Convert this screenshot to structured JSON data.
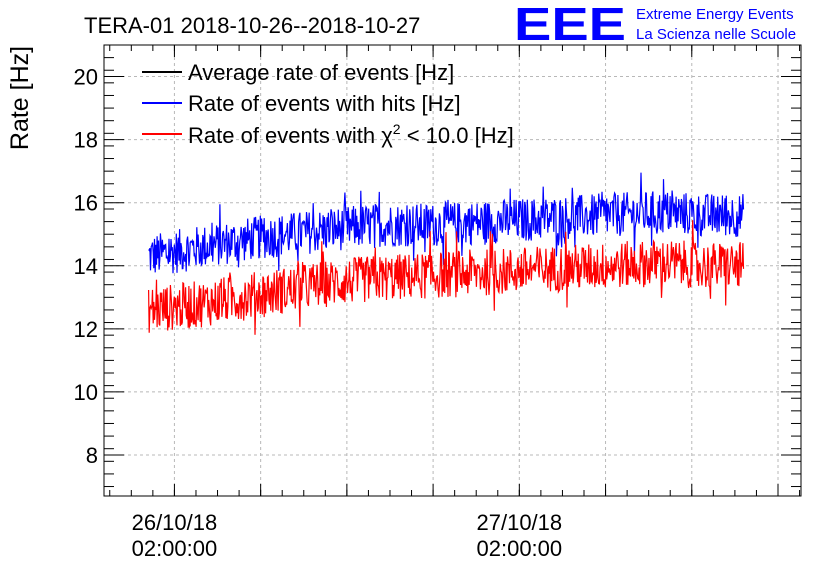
{
  "chart_data": {
    "type": "line",
    "title": "TERA-01 2018-10-26--2018-10-27",
    "ylabel": "Rate [Hz]",
    "xlabel": "",
    "ylim": [
      6.7,
      21
    ],
    "y_ticks": [
      8,
      10,
      12,
      14,
      16,
      18,
      20
    ],
    "x_ticks": [
      {
        "date": "26/10/18",
        "time": "02:00:00",
        "hours": 0
      },
      {
        "date": "27/10/18",
        "time": "02:00:00",
        "hours": 24
      }
    ],
    "xlim_hours": [
      -4.9,
      43.6
    ],
    "x_range_hours": [
      -1.8,
      39.6
    ],
    "grid": true,
    "legend_position": "top-left",
    "series": [
      {
        "name": "Average rate of events [Hz]",
        "color": "#000000",
        "trend_points": []
      },
      {
        "name": "Rate of events with hits [Hz]",
        "color": "#0000ff",
        "trend_points": [
          [
            -1.8,
            14.3
          ],
          [
            2,
            14.6
          ],
          [
            6,
            14.9
          ],
          [
            10,
            15.1
          ],
          [
            14,
            15.3
          ],
          [
            18,
            15.3
          ],
          [
            22,
            15.4
          ],
          [
            26,
            15.5
          ],
          [
            30,
            15.6
          ],
          [
            34,
            15.7
          ],
          [
            37,
            15.6
          ],
          [
            39.6,
            15.6
          ]
        ],
        "noise_amplitude": 0.7
      },
      {
        "name": "Rate of events with χ² < 10.0 [Hz]",
        "color": "#ff0000",
        "trend_points": [
          [
            -1.8,
            12.6
          ],
          [
            2,
            12.8
          ],
          [
            6,
            13.1
          ],
          [
            10,
            13.4
          ],
          [
            14,
            13.6
          ],
          [
            18,
            13.7
          ],
          [
            22,
            13.8
          ],
          [
            26,
            13.9
          ],
          [
            30,
            14.0
          ],
          [
            34,
            14.1
          ],
          [
            37,
            14.0
          ],
          [
            39.6,
            14.0
          ]
        ],
        "noise_amplitude": 0.75
      }
    ],
    "legend": {
      "entry1": "Average rate of events [Hz]",
      "entry2": "Rate of events with hits [Hz]",
      "entry3_prefix": "Rate of events with ",
      "entry3_chi": "χ",
      "entry3_sup": "2",
      "entry3_suffix": " < 10.0 [Hz]"
    }
  },
  "logo": {
    "mark": "EEE",
    "line1": "Extreme Energy Events",
    "line2": "La Scienza nelle Scuole",
    "color": "#0000ff"
  }
}
